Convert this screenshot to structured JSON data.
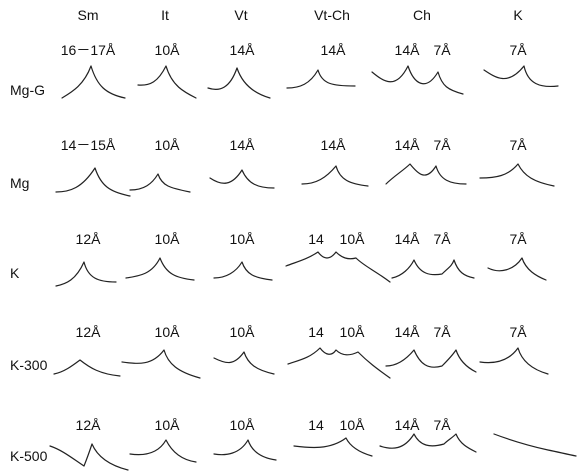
{
  "columns": [
    "Sm",
    "It",
    "Vt",
    "Vt-Ch",
    "Ch",
    "K"
  ],
  "rows": [
    {
      "label": "Mg-G",
      "peaks": [
        [
          "16－17Å"
        ],
        [
          "10Å"
        ],
        [
          "14Å"
        ],
        [
          "14Å"
        ],
        [
          "14Å",
          "7Å"
        ],
        [
          "7Å"
        ]
      ]
    },
    {
      "label": "Mg",
      "peaks": [
        [
          "14－15Å"
        ],
        [
          "10Å"
        ],
        [
          "14Å"
        ],
        [
          "14Å"
        ],
        [
          "14Å",
          "7Å"
        ],
        [
          "7Å"
        ]
      ]
    },
    {
      "label": "K",
      "peaks": [
        [
          "12Å"
        ],
        [
          "10Å"
        ],
        [
          "10Å"
        ],
        [
          "14",
          "10Å"
        ],
        [
          "14Å",
          "7Å"
        ],
        [
          "7Å"
        ]
      ]
    },
    {
      "label": "K-300",
      "peaks": [
        [
          "12Å"
        ],
        [
          "10Å"
        ],
        [
          "10Å"
        ],
        [
          "14",
          "10Å"
        ],
        [
          "14Å",
          "7Å"
        ],
        [
          "7Å"
        ]
      ]
    },
    {
      "label": "K-500",
      "peaks": [
        [
          "12Å"
        ],
        [
          "10Å"
        ],
        [
          "10Å"
        ],
        [
          "14",
          "10Å"
        ],
        [
          "14Å",
          "7Å"
        ],
        []
      ]
    }
  ]
}
